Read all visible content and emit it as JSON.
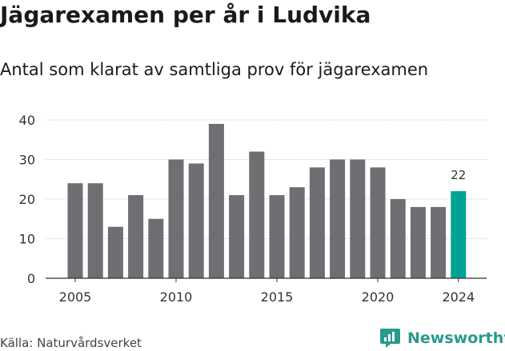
{
  "title": "Jägarexamen per år i Ludvika",
  "subtitle": "Antal som klarat av samtliga prov för jägarexamen",
  "source": "Källa: Naturvårdsverket",
  "brand": {
    "name": "Newsworthy",
    "icon": "newsworthy-logo-icon",
    "color": "#2a9a8d"
  },
  "colors": {
    "bar": "#6e6e73",
    "highlight": "#00a396",
    "grid": "#cccccc",
    "axis": "#333333"
  },
  "chart_data": {
    "type": "bar",
    "title": "Jägarexamen per år i Ludvika",
    "subtitle": "Antal som klarat av samtliga prov för jägarexamen",
    "xlabel": "",
    "ylabel": "",
    "ylim": [
      0,
      40
    ],
    "yticks": [
      0,
      10,
      20,
      30,
      40
    ],
    "xticks": [
      2005,
      2010,
      2015,
      2020,
      2024
    ],
    "categories": [
      2005,
      2006,
      2007,
      2008,
      2009,
      2010,
      2011,
      2012,
      2013,
      2014,
      2015,
      2016,
      2017,
      2018,
      2019,
      2020,
      2021,
      2022,
      2023,
      2024
    ],
    "values": [
      24,
      24,
      13,
      21,
      15,
      30,
      29,
      39,
      21,
      32,
      21,
      23,
      28,
      30,
      30,
      28,
      20,
      18,
      18,
      22
    ],
    "highlight": {
      "category": 2024,
      "label": "22"
    },
    "grid": "horizontal"
  }
}
